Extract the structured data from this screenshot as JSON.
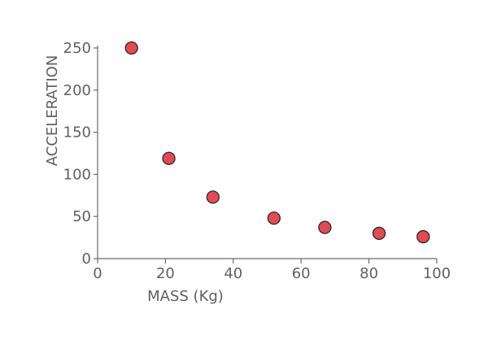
{
  "chart_data": {
    "type": "scatter",
    "xlabel": "MASS (Kg)",
    "ylabel": "ACCELERATION",
    "xlim": [
      0,
      100
    ],
    "ylim": [
      0,
      250
    ],
    "xticks": [
      "0",
      "20",
      "40",
      "60",
      "80",
      "100"
    ],
    "yticks": [
      "0",
      "50",
      "100",
      "150",
      "200",
      "250"
    ],
    "grid": false,
    "series": [
      {
        "x": [
          10,
          21,
          34,
          52,
          67,
          83,
          96
        ],
        "y": [
          250,
          119,
          73,
          48,
          37,
          30,
          26
        ]
      }
    ],
    "colors": {
      "point_fill": "#e24a55",
      "point_stroke": "#2a2a2a",
      "axis": "#6a6a6a",
      "text": "#606060"
    }
  }
}
